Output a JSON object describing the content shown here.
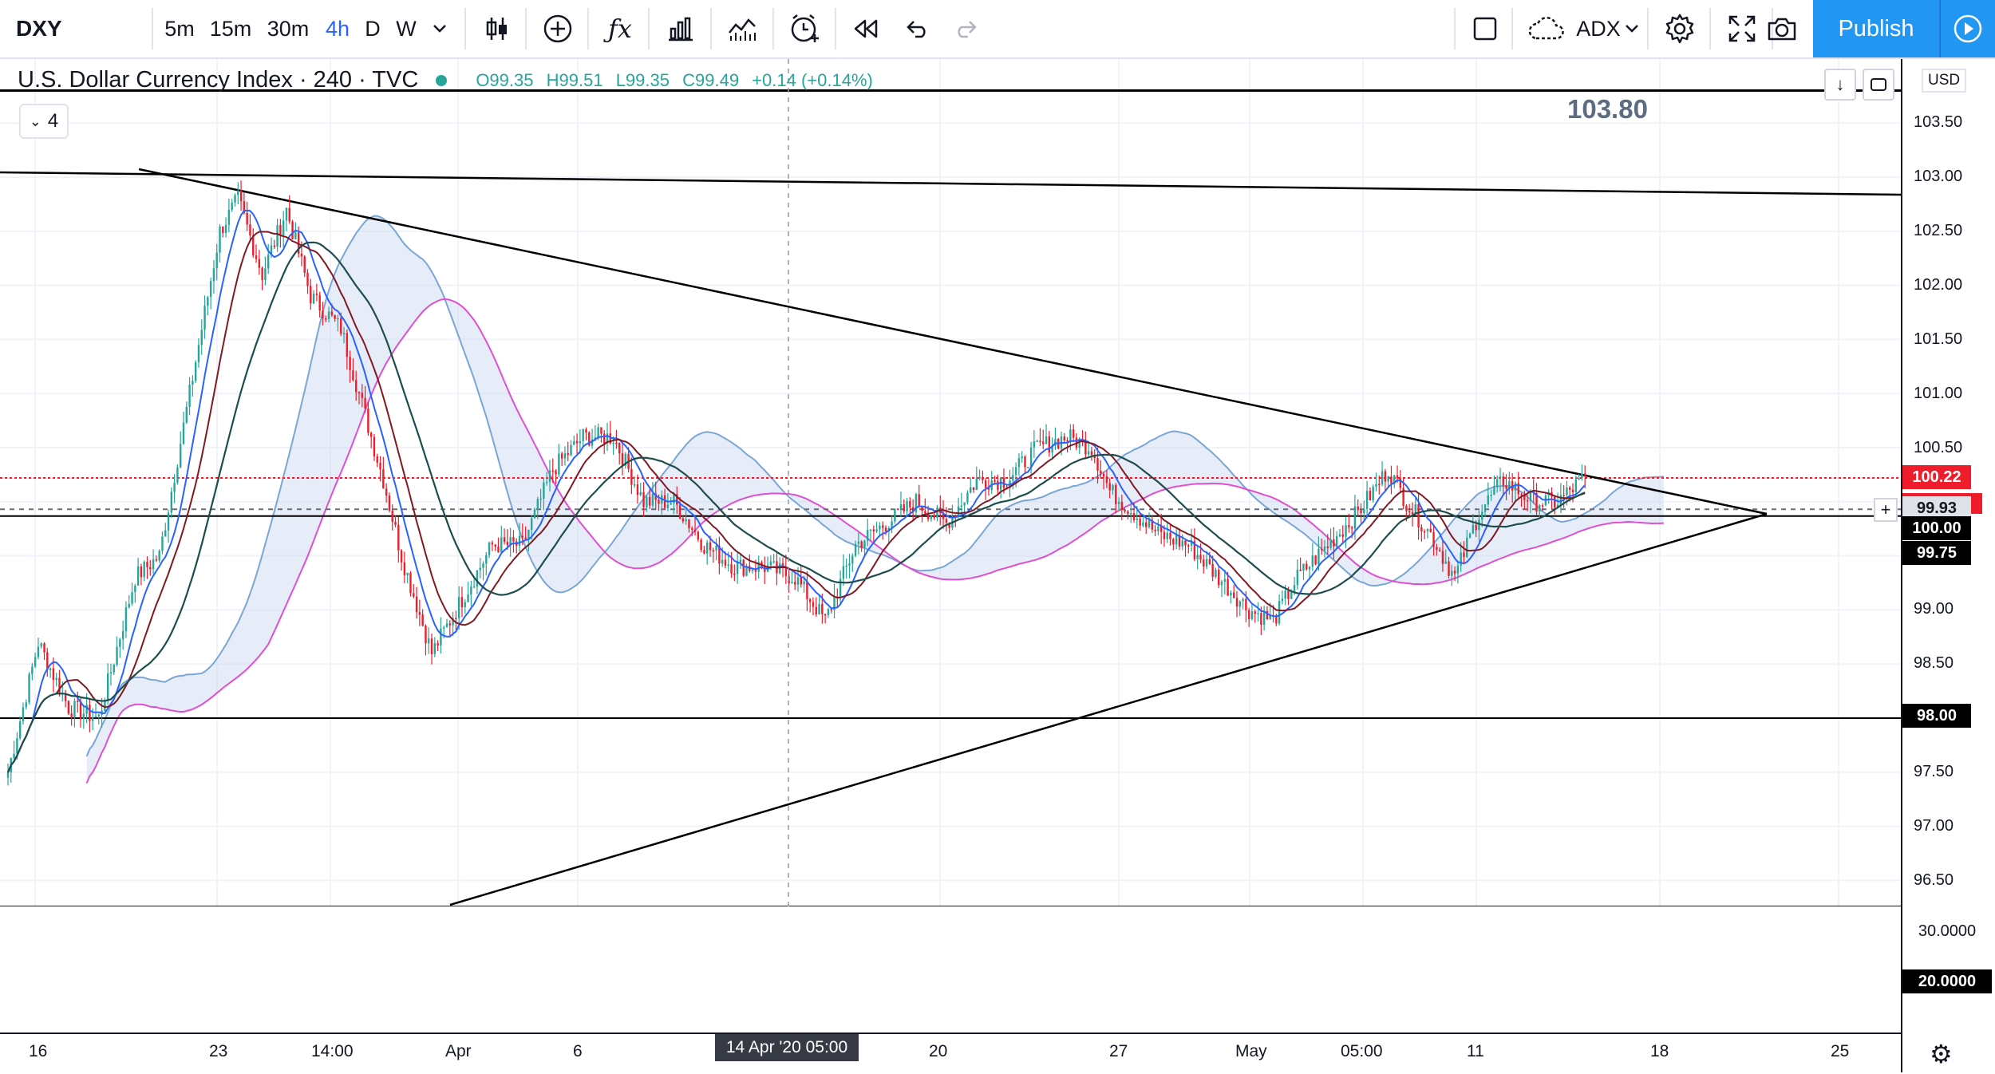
{
  "toolbar": {
    "symbol": "DXY",
    "intervals": [
      "5m",
      "15m",
      "30m",
      "4h",
      "D",
      "W"
    ],
    "active_interval": "4h",
    "indicator_name": "ADX",
    "publish_label": "Publish"
  },
  "legend": {
    "title": "U.S. Dollar Currency Index · 240 · TVC",
    "open": "O99.35",
    "high": "H99.51",
    "low": "L99.35",
    "close": "C99.49",
    "change": "+0.14 (+0.14%)",
    "study_count": "4"
  },
  "price_axis": {
    "unit": "USD",
    "ticks": [
      "103.50",
      "103.00",
      "102.50",
      "102.00",
      "101.50",
      "101.00",
      "100.50",
      "99.00",
      "98.50",
      "97.50",
      "97.00",
      "96.50"
    ],
    "labels": {
      "alert_price": "100.22",
      "current_price": "99.93",
      "level_100": "100.00",
      "level_9975": "99.75",
      "level_98": "98.00"
    },
    "big_label": "103.80"
  },
  "adx_axis": {
    "tick": "30.0000",
    "level": "20.0000"
  },
  "time_axis": {
    "labels": [
      "16",
      "23",
      "14:00",
      "Apr",
      "6",
      "20",
      "27",
      "May",
      "05:00",
      "11",
      "18",
      "25"
    ],
    "crosshair_label": "14 Apr '20   05:00"
  },
  "chart_data": {
    "type": "candlestick",
    "symbol": "DXY",
    "timeframe": "240",
    "ylim": [
      96.2,
      104.0
    ],
    "horizontal_levels": [
      103.8,
      100.22,
      100.0,
      99.75,
      98.0
    ],
    "series_colors": {
      "up": "#26a69a",
      "down": "#ef1c2c",
      "tenkan": "#2962ff",
      "kijun": "#801922",
      "sma": "#1e4d4d",
      "kumo_a": "#7aa6d6",
      "kumo_b": "#e04fd0",
      "adx": "#000000",
      "di_plus": "#4caf50",
      "di_minus": "#d32f2f"
    },
    "price_path": [
      [
        0,
        97.5
      ],
      [
        10,
        98.7
      ],
      [
        20,
        98.1
      ],
      [
        30,
        98.0
      ],
      [
        42,
        99.3
      ],
      [
        50,
        99.5
      ],
      [
        60,
        101.0
      ],
      [
        70,
        102.5
      ],
      [
        76,
        102.8
      ],
      [
        84,
        102.1
      ],
      [
        92,
        102.7
      ],
      [
        100,
        101.9
      ],
      [
        110,
        101.6
      ],
      [
        116,
        101.0
      ],
      [
        124,
        100.2
      ],
      [
        130,
        99.5
      ],
      [
        140,
        98.6
      ],
      [
        150,
        99.1
      ],
      [
        160,
        99.6
      ],
      [
        170,
        99.6
      ],
      [
        180,
        100.3
      ],
      [
        190,
        100.6
      ],
      [
        200,
        100.6
      ],
      [
        210,
        100.0
      ],
      [
        220,
        100.0
      ],
      [
        230,
        99.6
      ],
      [
        240,
        99.4
      ],
      [
        250,
        99.4
      ],
      [
        260,
        99.3
      ],
      [
        270,
        98.9
      ],
      [
        280,
        99.6
      ],
      [
        290,
        99.8
      ],
      [
        300,
        100.0
      ],
      [
        310,
        99.8
      ],
      [
        320,
        100.2
      ],
      [
        330,
        100.2
      ],
      [
        340,
        100.5
      ],
      [
        350,
        100.6
      ],
      [
        358,
        100.5
      ],
      [
        364,
        100.1
      ],
      [
        372,
        99.9
      ],
      [
        380,
        99.7
      ],
      [
        390,
        99.6
      ],
      [
        400,
        99.3
      ],
      [
        410,
        99.0
      ],
      [
        418,
        98.9
      ],
      [
        426,
        99.3
      ],
      [
        436,
        99.6
      ],
      [
        446,
        99.9
      ],
      [
        456,
        100.3
      ],
      [
        462,
        100.0
      ],
      [
        470,
        99.7
      ],
      [
        478,
        99.3
      ],
      [
        486,
        99.9
      ],
      [
        494,
        100.2
      ],
      [
        504,
        100.0
      ],
      [
        512,
        100.0
      ],
      [
        520,
        100.2
      ]
    ]
  }
}
